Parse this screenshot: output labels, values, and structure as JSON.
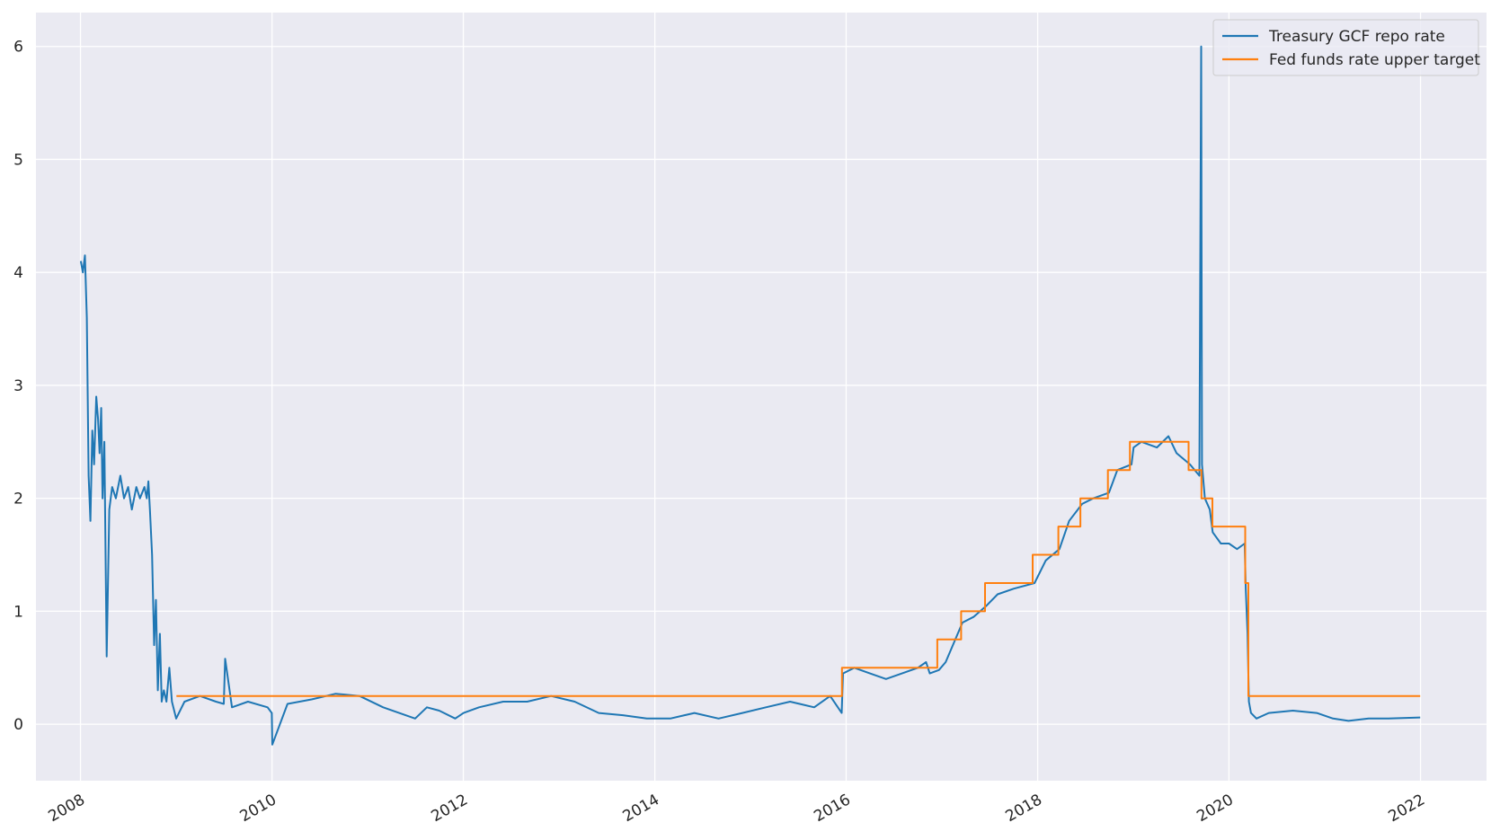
{
  "chart_data": {
    "type": "line",
    "title": "",
    "xlabel": "",
    "ylabel": "",
    "xlim": [
      "2007-07-15",
      "2022-09-10"
    ],
    "ylim": [
      -0.5,
      6.3
    ],
    "x_ticks": [
      "2008-01-01",
      "2010-01-01",
      "2012-01-01",
      "2014-01-01",
      "2016-01-01",
      "2018-01-01",
      "2020-01-01",
      "2022-01-01"
    ],
    "x_tick_labels": [
      "2008",
      "2010",
      "2012",
      "2014",
      "2016",
      "2018",
      "2020",
      "2022"
    ],
    "y_ticks": [
      0,
      1,
      2,
      3,
      4,
      5,
      6
    ],
    "y_tick_labels": [
      "0",
      "1",
      "2",
      "3",
      "4",
      "5",
      "6"
    ],
    "grid": true,
    "legend_position": "top-right",
    "colors": {
      "background": "#eaeaf2",
      "grid": "#ffffff",
      "repo": "#1f77b4",
      "fed": "#ff7f0e",
      "text": "#262626"
    },
    "series": [
      {
        "name": "Treasury GCF repo rate",
        "x": [
          "2008-01-02",
          "2008-01-10",
          "2008-01-18",
          "2008-01-25",
          "2008-02-01",
          "2008-02-08",
          "2008-02-15",
          "2008-02-22",
          "2008-03-01",
          "2008-03-08",
          "2008-03-14",
          "2008-03-20",
          "2008-03-25",
          "2008-04-01",
          "2008-04-10",
          "2008-04-20",
          "2008-05-01",
          "2008-05-15",
          "2008-06-01",
          "2008-06-15",
          "2008-07-01",
          "2008-07-15",
          "2008-08-01",
          "2008-08-15",
          "2008-09-01",
          "2008-09-10",
          "2008-09-16",
          "2008-09-22",
          "2008-09-30",
          "2008-10-08",
          "2008-10-15",
          "2008-10-22",
          "2008-10-30",
          "2008-11-06",
          "2008-11-14",
          "2008-11-24",
          "2008-12-05",
          "2008-12-15",
          "2008-12-31",
          "2009-02-01",
          "2009-04-01",
          "2009-06-01",
          "2009-07-01",
          "2009-07-06",
          "2009-08-01",
          "2009-10-01",
          "2009-12-15",
          "2009-12-31",
          "2010-01-02",
          "2010-03-01",
          "2010-06-01",
          "2010-09-01",
          "2010-12-01",
          "2011-03-01",
          "2011-05-01",
          "2011-07-01",
          "2011-08-15",
          "2011-10-01",
          "2011-12-01",
          "2012-01-02",
          "2012-03-01",
          "2012-06-01",
          "2012-09-01",
          "2012-12-01",
          "2013-03-01",
          "2013-06-01",
          "2013-09-01",
          "2013-12-01",
          "2014-03-01",
          "2014-06-01",
          "2014-09-01",
          "2014-12-01",
          "2015-03-01",
          "2015-06-01",
          "2015-09-01",
          "2015-11-01",
          "2015-12-15",
          "2015-12-20",
          "2016-02-01",
          "2016-04-01",
          "2016-06-01",
          "2016-08-01",
          "2016-10-01",
          "2016-11-01",
          "2016-11-15",
          "2016-12-20",
          "2017-01-15",
          "2017-03-20",
          "2017-05-01",
          "2017-06-20",
          "2017-08-01",
          "2017-10-01",
          "2017-12-20",
          "2018-02-01",
          "2018-03-25",
          "2018-05-01",
          "2018-06-20",
          "2018-08-01",
          "2018-09-30",
          "2018-11-01",
          "2018-12-25",
          "2019-01-02",
          "2019-02-01",
          "2019-04-01",
          "2019-05-15",
          "2019-06-15",
          "2019-08-05",
          "2019-09-10",
          "2019-09-17",
          "2019-09-20",
          "2019-10-01",
          "2019-10-20",
          "2019-10-31",
          "2019-12-01",
          "2020-01-01",
          "2020-02-01",
          "2020-03-01",
          "2020-03-05",
          "2020-03-12",
          "2020-03-17",
          "2020-03-25",
          "2020-04-15",
          "2020-06-01",
          "2020-09-01",
          "2020-12-01",
          "2021-02-01",
          "2021-04-01",
          "2021-06-17",
          "2021-09-01",
          "2021-12-31"
        ],
        "y": [
          4.1,
          4.0,
          4.15,
          3.6,
          2.2,
          1.8,
          2.6,
          2.3,
          2.9,
          2.7,
          2.4,
          2.8,
          2.0,
          2.5,
          0.6,
          1.9,
          2.1,
          2.0,
          2.2,
          2.0,
          2.1,
          1.9,
          2.1,
          2.0,
          2.1,
          2.0,
          2.15,
          1.9,
          1.5,
          0.7,
          1.1,
          0.3,
          0.8,
          0.2,
          0.3,
          0.2,
          0.5,
          0.2,
          0.05,
          0.2,
          0.25,
          0.2,
          0.18,
          0.58,
          0.15,
          0.2,
          0.15,
          0.1,
          -0.18,
          0.18,
          0.22,
          0.27,
          0.25,
          0.15,
          0.1,
          0.05,
          0.15,
          0.12,
          0.05,
          0.1,
          0.15,
          0.2,
          0.2,
          0.25,
          0.2,
          0.1,
          0.08,
          0.05,
          0.05,
          0.1,
          0.05,
          0.1,
          0.15,
          0.2,
          0.15,
          0.25,
          0.1,
          0.45,
          0.5,
          0.45,
          0.4,
          0.45,
          0.5,
          0.55,
          0.45,
          0.48,
          0.55,
          0.9,
          0.95,
          1.05,
          1.15,
          1.2,
          1.25,
          1.45,
          1.55,
          1.8,
          1.95,
          2.0,
          2.05,
          2.25,
          2.3,
          2.45,
          2.5,
          2.45,
          2.55,
          2.4,
          2.3,
          2.2,
          6.0,
          2.3,
          2.0,
          1.9,
          1.7,
          1.6,
          1.6,
          1.55,
          1.6,
          1.2,
          0.8,
          0.2,
          0.1,
          0.05,
          0.1,
          0.12,
          0.1,
          0.05,
          0.03,
          0.05,
          0.05,
          0.06
        ]
      },
      {
        "name": "Fed funds rate upper target",
        "x": [
          "2009-01-01",
          "2015-12-16",
          "2016-12-14",
          "2017-03-15",
          "2017-06-14",
          "2017-12-13",
          "2018-03-21",
          "2018-06-13",
          "2018-09-26",
          "2018-12-19",
          "2019-07-31",
          "2019-09-18",
          "2019-10-30",
          "2020-03-03",
          "2020-03-15",
          "2021-12-31"
        ],
        "y": [
          0.25,
          0.5,
          0.75,
          1.0,
          1.25,
          1.5,
          1.75,
          2.0,
          2.25,
          2.5,
          2.25,
          2.0,
          1.75,
          1.25,
          0.25,
          0.25
        ],
        "step": "post"
      }
    ]
  }
}
